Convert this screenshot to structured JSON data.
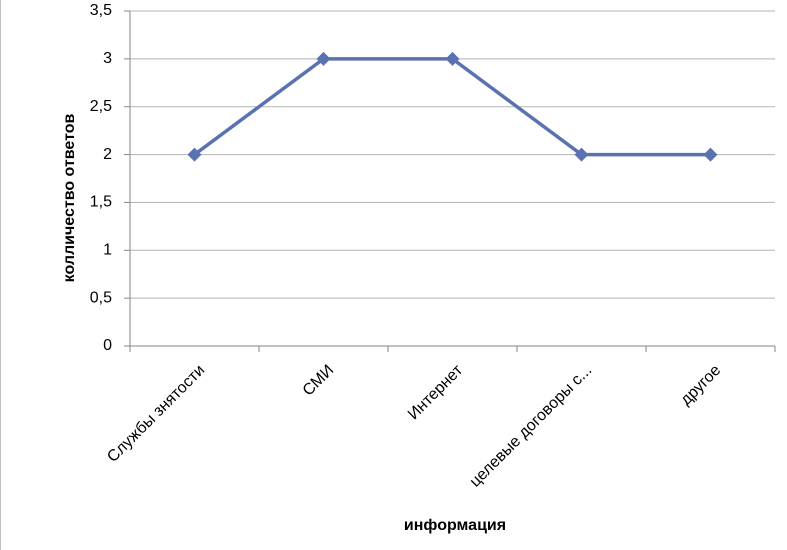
{
  "chart_data": {
    "type": "line",
    "x_label": "информация",
    "y_label": "колличество ответов",
    "categories": [
      "Службы знятости",
      "СМИ",
      "Интернет",
      "целевые договоры с...",
      "другое"
    ],
    "series": [
      {
        "name": "колличество ответов",
        "color": "#5b72b2",
        "values": [
          2,
          3,
          3,
          2,
          2
        ]
      }
    ],
    "ylim": [
      0,
      3.5
    ],
    "yticks": [
      0,
      {
        "value": 0.5,
        "label": "0,5"
      },
      1,
      {
        "value": 1.5,
        "label": "1,5"
      },
      2,
      {
        "value": 2.5,
        "label": "2,5"
      },
      3,
      {
        "value": 3.5,
        "label": "3,5"
      }
    ],
    "grid": true,
    "legend": false
  }
}
